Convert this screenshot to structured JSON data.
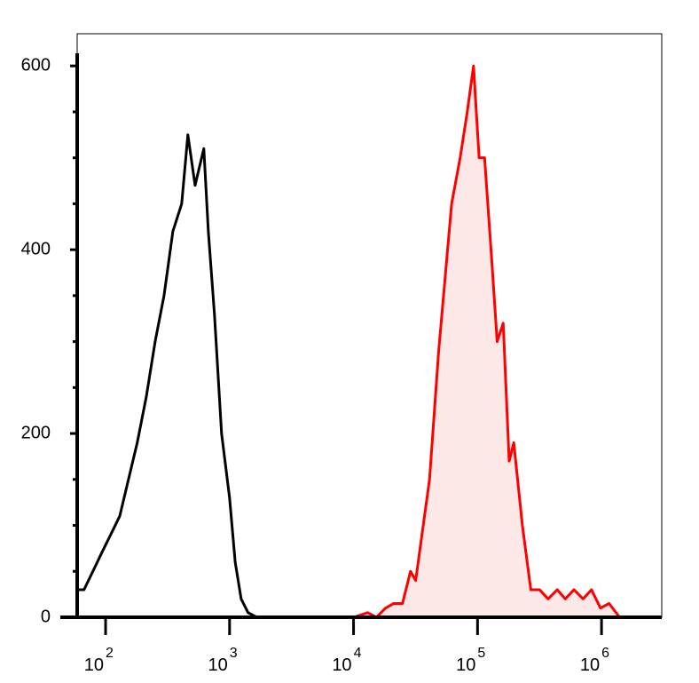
{
  "chart_data": {
    "type": "histogram-overlay",
    "xscale": "log",
    "xlim": [
      59,
      3060000
    ],
    "ylim": [
      0,
      635
    ],
    "xticks": [
      {
        "value": 100,
        "label": "10",
        "exponent": "2"
      },
      {
        "value": 1000,
        "label": "10",
        "exponent": "3"
      },
      {
        "value": 10000,
        "label": "10",
        "exponent": "4"
      },
      {
        "value": 100000,
        "label": "10",
        "exponent": "5"
      },
      {
        "value": 1000000,
        "label": "10",
        "exponent": "6"
      }
    ],
    "yticks": [
      0,
      200,
      400,
      600
    ],
    "yminorticks": [
      50,
      100,
      150,
      250,
      300,
      350,
      450,
      500,
      550
    ],
    "series": [
      {
        "color": "#000000",
        "fill": "none",
        "x": [
          59,
          67,
          79,
          93,
          110,
          130,
          153,
          180,
          213,
          251,
          296,
          349,
          411,
          461,
          527,
          620,
          674,
          755,
          862,
          1000,
          1110,
          1240,
          1410,
          1660,
          2720,
          7950
        ],
        "values": [
          30,
          30,
          50,
          70,
          90,
          110,
          150,
          190,
          240,
          300,
          350,
          420,
          450,
          525,
          470,
          510,
          420,
          330,
          200,
          130,
          60,
          20,
          5,
          0,
          0,
          0
        ]
      },
      {
        "color": "#ff0000",
        "fill": "#fde8e8",
        "x": [
          10000,
          13000,
          15300,
          18100,
          21100,
          24800,
          28800,
          31700,
          41000,
          48600,
          61800,
          72400,
          82600,
          92800,
          103000,
          114000,
          130000,
          144000,
          161000,
          180000,
          196000,
          230000,
          269000,
          316000,
          371000,
          440000,
          510000,
          600000,
          710000,
          830000,
          980000,
          1150000,
          1400000,
          2700000
        ],
        "values": [
          0,
          5,
          0,
          10,
          15,
          15,
          50,
          40,
          150,
          290,
          450,
          500,
          550,
          600,
          500,
          500,
          390,
          300,
          320,
          170,
          190,
          100,
          30,
          30,
          20,
          30,
          20,
          30,
          20,
          30,
          10,
          15,
          0,
          0
        ]
      }
    ]
  }
}
